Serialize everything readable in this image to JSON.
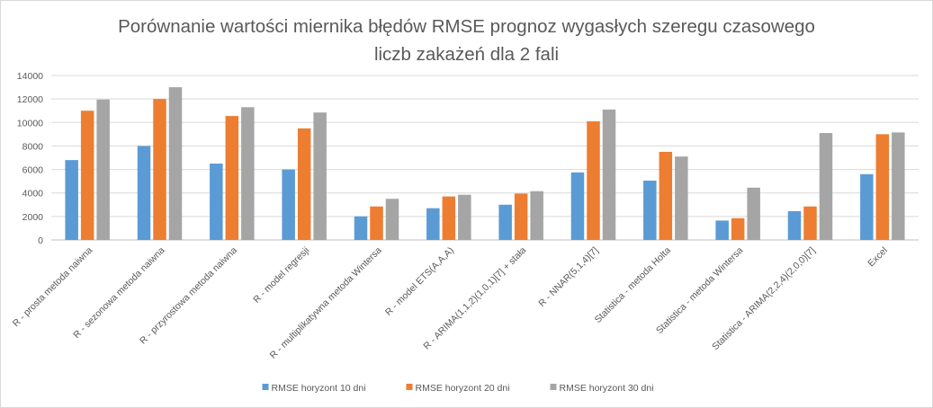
{
  "chart_data": {
    "type": "bar",
    "title_line1": "Porównanie wartości miernika błędów RMSE prognoz wygasłych szeregu czasowego",
    "title_line2": "liczb zakażeń dla 2 fali",
    "categories": [
      "R - prosta metoda naiwna",
      "R - sezonowa metoda naiwna",
      "R - przyrostowa metoda naiwna",
      "R - model regresji",
      "R - multiplikatywna metoda Wintersa",
      "R - model ETS(A,A,A)",
      "R - ARIMA(1,1,2)(1,0,1)[7] + stała",
      "R - NNAR(5,1,4)[7]",
      "Statistica - metoda Holta",
      "Statistica - metoda Wintersa",
      "Statistica - ARIMA(2,2,4)(2,0,0)[7]",
      "Excel"
    ],
    "series": [
      {
        "name": "RMSE horyzont 10 dni",
        "color": "#5b9bd5",
        "values": [
          6800,
          8000,
          6500,
          6000,
          2000,
          2700,
          3000,
          5750,
          5050,
          1650,
          2450,
          5600
        ]
      },
      {
        "name": "RMSE horyzont 20 dni",
        "color": "#ed7d31",
        "values": [
          11000,
          12000,
          10550,
          9500,
          2850,
          3700,
          3950,
          10100,
          7500,
          1850,
          2850,
          9000
        ]
      },
      {
        "name": "RMSE horyzont 30 dni",
        "color": "#a5a5a5",
        "values": [
          11950,
          13000,
          11300,
          10850,
          3500,
          3850,
          4150,
          11100,
          7100,
          4450,
          9100,
          9150
        ]
      }
    ],
    "yticks": [
      "0",
      "2000",
      "4000",
      "6000",
      "8000",
      "10000",
      "12000",
      "14000"
    ],
    "ylim": [
      0,
      14000
    ],
    "grid": true,
    "legend_position": "bottom"
  }
}
